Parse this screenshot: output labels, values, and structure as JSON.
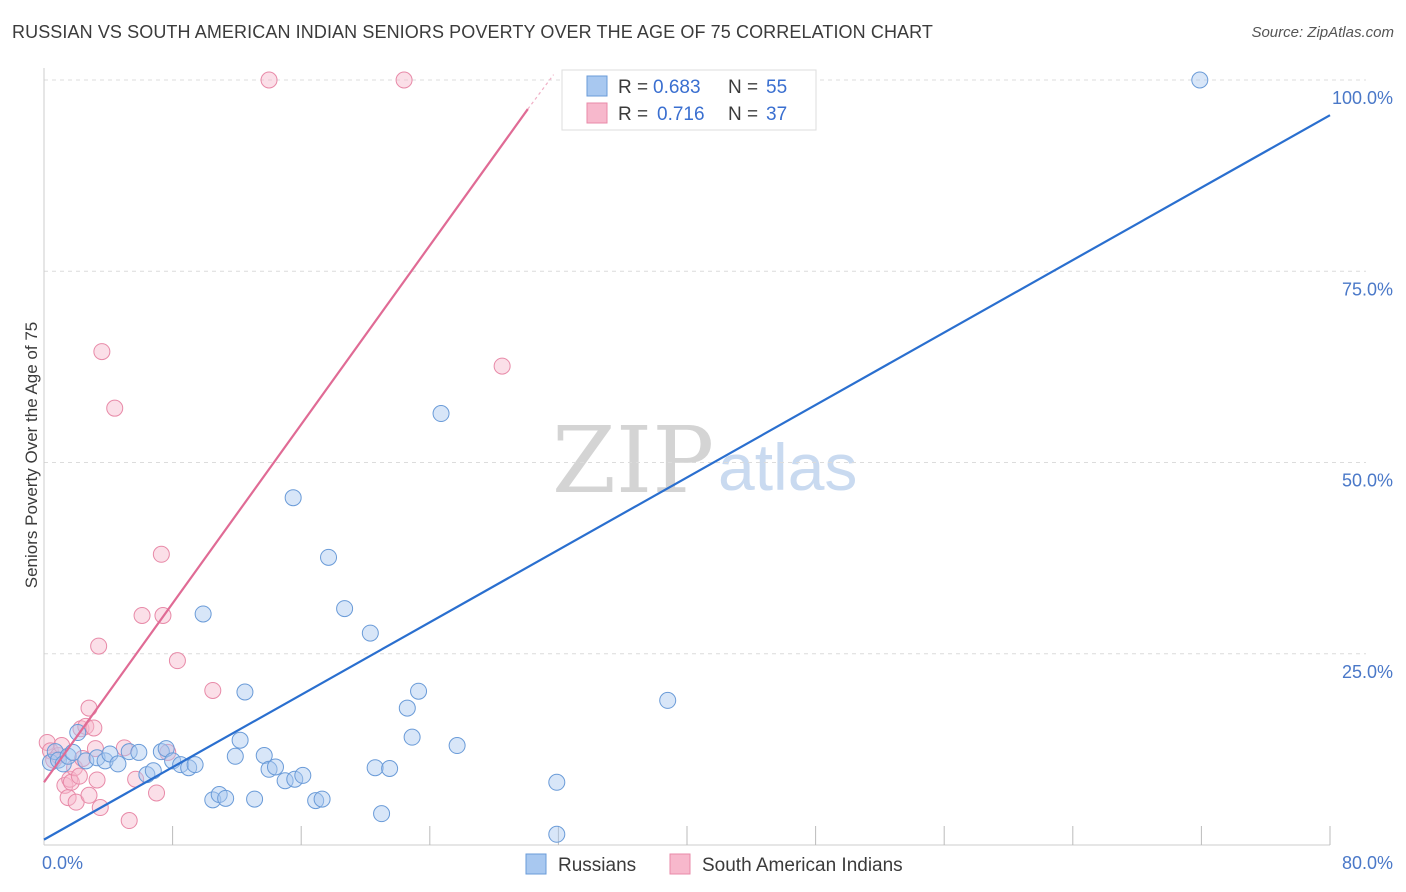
{
  "header": {
    "title": "RUSSIAN VS SOUTH AMERICAN INDIAN SENIORS POVERTY OVER THE AGE OF 75 CORRELATION CHART",
    "source": "Source: ZipAtlas.com"
  },
  "watermark": {
    "zip": "ZIP",
    "atlas": "atlas"
  },
  "stats_legend": {
    "rows": [
      {
        "r_label": "R =",
        "r_value": "0.683",
        "n_label": "N =",
        "n_value": "55",
        "color": "#a8c8f0",
        "stroke": "#6a9bd8"
      },
      {
        "r_label": "R =",
        "r_value": "0.716",
        "n_label": "N =",
        "n_value": "37",
        "color": "#f7b8cc",
        "stroke": "#e88aa8"
      }
    ]
  },
  "chart_data": {
    "type": "scatter",
    "title": "RUSSIAN VS SOUTH AMERICAN INDIAN SENIORS POVERTY OVER THE AGE OF 75 CORRELATION CHART",
    "xlabel": "",
    "ylabel": "Seniors Poverty Over the Age of 75",
    "xlim": [
      0,
      80
    ],
    "ylim": [
      0,
      100
    ],
    "x_tick_labels": [
      "0.0%",
      "80.0%"
    ],
    "y_tick_labels": [
      "25.0%",
      "50.0%",
      "75.0%",
      "100.0%"
    ],
    "y_ticks": [
      25,
      50,
      75,
      100
    ],
    "x_minor_ticks": [
      8,
      16,
      24,
      32,
      40,
      48,
      56,
      64,
      72,
      80
    ],
    "grid": true,
    "legend": "bottom-center",
    "colors": {
      "russians": "#5b9bd5",
      "south_american_indians": "#f08cab",
      "blue_line": "#2a6fcf",
      "pink_line": "#e06b95"
    },
    "series": [
      {
        "name": "Russians",
        "points": [
          [
            0.4,
            10.8
          ],
          [
            0.7,
            12.2
          ],
          [
            0.9,
            11.1
          ],
          [
            1.2,
            10.6
          ],
          [
            1.5,
            11.6
          ],
          [
            1.8,
            12.1
          ],
          [
            2.1,
            14.7
          ],
          [
            2.6,
            11.0
          ],
          [
            3.3,
            11.4
          ],
          [
            3.8,
            11.0
          ],
          [
            4.1,
            11.9
          ],
          [
            4.6,
            10.6
          ],
          [
            5.3,
            12.2
          ],
          [
            5.9,
            12.1
          ],
          [
            6.4,
            9.2
          ],
          [
            6.8,
            9.7
          ],
          [
            7.3,
            12.2
          ],
          [
            7.6,
            12.6
          ],
          [
            8.0,
            11.0
          ],
          [
            8.5,
            10.5
          ],
          [
            9.0,
            10.1
          ],
          [
            9.4,
            10.5
          ],
          [
            9.9,
            30.2
          ],
          [
            10.5,
            5.9
          ],
          [
            10.9,
            6.6
          ],
          [
            11.3,
            6.1
          ],
          [
            11.9,
            11.6
          ],
          [
            12.2,
            13.7
          ],
          [
            12.5,
            20.0
          ],
          [
            13.1,
            6.0
          ],
          [
            13.7,
            11.7
          ],
          [
            14.0,
            9.9
          ],
          [
            14.4,
            10.2
          ],
          [
            15.0,
            8.4
          ],
          [
            15.6,
            8.6
          ],
          [
            16.1,
            9.1
          ],
          [
            16.9,
            5.8
          ],
          [
            17.3,
            6.0
          ],
          [
            17.7,
            37.6
          ],
          [
            18.7,
            30.9
          ],
          [
            20.3,
            27.7
          ],
          [
            20.6,
            10.1
          ],
          [
            21.0,
            4.1
          ],
          [
            21.5,
            10.0
          ],
          [
            22.6,
            17.9
          ],
          [
            22.9,
            14.1
          ],
          [
            23.3,
            20.1
          ],
          [
            24.7,
            56.4
          ],
          [
            25.7,
            13.0
          ],
          [
            31.9,
            8.2
          ],
          [
            31.9,
            1.4
          ],
          [
            38.8,
            18.9
          ],
          [
            40.0,
            100.0
          ],
          [
            71.9,
            100.0
          ],
          [
            15.5,
            45.4
          ]
        ],
        "fit": {
          "from": [
            0,
            0.7
          ],
          "to": [
            80,
            95.4
          ]
        }
      },
      {
        "name": "South American Indians",
        "points": [
          [
            0.2,
            13.4
          ],
          [
            0.4,
            12.3
          ],
          [
            0.6,
            11.1
          ],
          [
            0.9,
            11.7
          ],
          [
            1.1,
            13.0
          ],
          [
            1.3,
            7.8
          ],
          [
            1.5,
            6.2
          ],
          [
            1.6,
            8.6
          ],
          [
            1.7,
            8.2
          ],
          [
            1.9,
            10.1
          ],
          [
            2.0,
            5.6
          ],
          [
            2.2,
            9.0
          ],
          [
            2.3,
            15.2
          ],
          [
            2.6,
            15.5
          ],
          [
            2.8,
            17.9
          ],
          [
            2.8,
            6.5
          ],
          [
            3.1,
            15.3
          ],
          [
            3.2,
            12.6
          ],
          [
            3.3,
            8.5
          ],
          [
            3.4,
            26.0
          ],
          [
            3.5,
            4.9
          ],
          [
            3.6,
            64.5
          ],
          [
            4.4,
            57.1
          ],
          [
            5.0,
            12.7
          ],
          [
            5.3,
            3.2
          ],
          [
            5.7,
            8.6
          ],
          [
            6.1,
            30.0
          ],
          [
            7.0,
            6.8
          ],
          [
            7.3,
            38.0
          ],
          [
            7.4,
            30.0
          ],
          [
            7.7,
            12.1
          ],
          [
            8.3,
            24.1
          ],
          [
            10.5,
            20.2
          ],
          [
            14.0,
            100.0
          ],
          [
            22.4,
            100.0
          ],
          [
            28.5,
            62.6
          ],
          [
            2.4,
            11.3
          ]
        ],
        "fit": {
          "from": [
            0,
            8.2
          ],
          "to": [
            30.1,
            96.2
          ]
        }
      }
    ]
  }
}
